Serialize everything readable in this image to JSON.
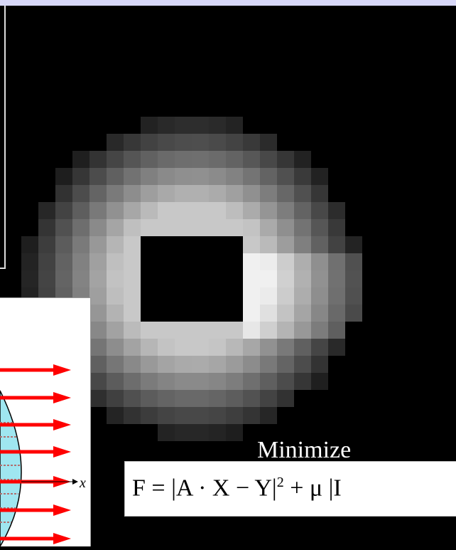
{
  "caption": "Minimize",
  "formula": {
    "main": "F = |A · X − Y|",
    "exponent": "2",
    "tail": " + μ |I"
  },
  "diagram": {
    "axis_label": "x"
  }
}
